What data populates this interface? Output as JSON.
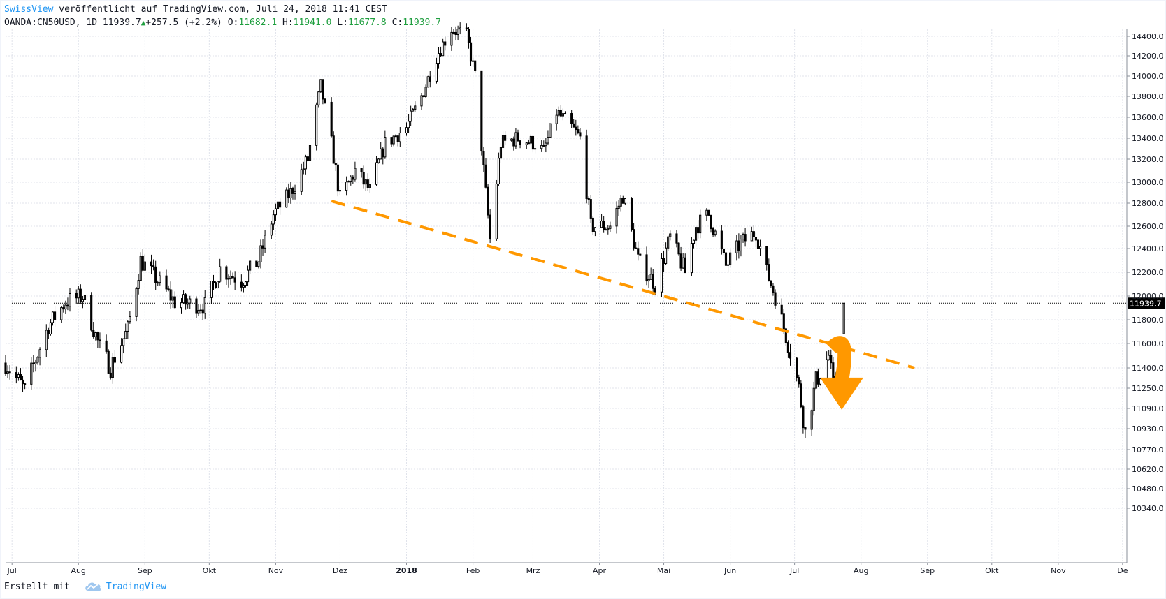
{
  "header": {
    "author": "SwissView",
    "published_text": "veröffentlicht auf TradingView.com, Juli 24, 2018 11:41 CEST",
    "symbol": "OANDA:CN50USD, 1D",
    "last": "11939.7",
    "change": "+257.5 (+2.2%)",
    "o_label": "O:",
    "o_value": "11682.1",
    "h_label": "H:",
    "h_value": "11941.0",
    "l_label": "L:",
    "l_value": "11677.8",
    "c_label": "C:",
    "c_value": "11939.7"
  },
  "footer": {
    "made_with": "Erstellt mit",
    "brand": "TradingView"
  },
  "colors": {
    "candle": "#000000",
    "grid": "#e0e3eb",
    "trendline": "#ff9800",
    "arrow": "#ff9800",
    "price_label_bg": "#000000"
  },
  "chart_data": {
    "type": "candlestick",
    "title": "",
    "symbol": "OANDA:CN50USD",
    "interval": "1D",
    "current_price": 11939.7,
    "current_price_label": "11939.7",
    "x_ticks": [
      "Jul",
      "Aug",
      "Sep",
      "Okt",
      "Nov",
      "Dez",
      "2018",
      "Feb",
      "Mrz",
      "Apr",
      "Mai",
      "Jun",
      "Jul",
      "Aug",
      "Sep",
      "Okt",
      "Nov",
      "De"
    ],
    "x_tick_dates": [
      "2017-07-01",
      "2017-08-01",
      "2017-09-01",
      "2017-10-01",
      "2017-11-01",
      "2017-12-01",
      "2018-01-01",
      "2018-02-01",
      "2018-03-01",
      "2018-04-01",
      "2018-05-01",
      "2018-06-01",
      "2018-07-01",
      "2018-08-01",
      "2018-09-01",
      "2018-10-01",
      "2018-11-01",
      "2018-12-01"
    ],
    "x_range": [
      "2017-06-28",
      "2018-12-03"
    ],
    "y_ticks": [
      14400,
      14200,
      14000,
      13800,
      13600,
      13400,
      13200,
      13000,
      12800,
      12600,
      12400,
      12200,
      12000,
      11800,
      11600,
      11400,
      11250,
      11090,
      10930,
      10770,
      10620,
      10480,
      10340
    ],
    "y_tick_labels": [
      "14400.0",
      "14200.0",
      "14000.0",
      "13800.0",
      "13600.0",
      "13400.0",
      "13200.0",
      "13000.0",
      "12800.0",
      "12600.0",
      "12400.0",
      "12200.0",
      "12000.0",
      "11800.0",
      "11600.0",
      "11400.0",
      "11250.0",
      "11090.0",
      "10930.0",
      "10770.0",
      "10620.0",
      "10480.0",
      "10340.0"
    ],
    "price_path": [
      [
        "2017-06-28",
        11440
      ],
      [
        "2017-07-07",
        11230
      ],
      [
        "2017-07-18",
        11750
      ],
      [
        "2017-07-26",
        11950
      ],
      [
        "2017-08-03",
        12000
      ],
      [
        "2017-08-11",
        11560
      ],
      [
        "2017-08-16",
        11410
      ],
      [
        "2017-08-24",
        11720
      ],
      [
        "2017-08-30",
        12300
      ],
      [
        "2017-09-07",
        12130
      ],
      [
        "2017-09-15",
        11950
      ],
      [
        "2017-09-29",
        11920
      ],
      [
        "2017-10-06",
        12230
      ],
      [
        "2017-10-16",
        12130
      ],
      [
        "2017-10-24",
        12300
      ],
      [
        "2017-10-31",
        12700
      ],
      [
        "2017-11-08",
        12900
      ],
      [
        "2017-11-16",
        13200
      ],
      [
        "2017-11-22",
        13900
      ],
      [
        "2017-11-27",
        13350
      ],
      [
        "2017-12-01",
        12850
      ],
      [
        "2017-12-08",
        13100
      ],
      [
        "2017-12-15",
        12920
      ],
      [
        "2017-12-22",
        13350
      ],
      [
        "2018-01-01",
        13500
      ],
      [
        "2018-01-08",
        13800
      ],
      [
        "2018-01-15",
        14200
      ],
      [
        "2018-01-22",
        14480
      ],
      [
        "2018-01-29",
        14400
      ],
      [
        "2018-02-02",
        14000
      ],
      [
        "2018-02-06",
        13100
      ],
      [
        "2018-02-09",
        12480
      ],
      [
        "2018-02-14",
        13350
      ],
      [
        "2018-02-22",
        13400
      ],
      [
        "2018-03-02",
        13350
      ],
      [
        "2018-03-06",
        13270
      ],
      [
        "2018-03-12",
        13650
      ],
      [
        "2018-03-19",
        13500
      ],
      [
        "2018-03-23",
        13400
      ],
      [
        "2018-03-28",
        12600
      ],
      [
        "2018-04-06",
        12600
      ],
      [
        "2018-04-12",
        12870
      ],
      [
        "2018-04-19",
        12300
      ],
      [
        "2018-04-27",
        12100
      ],
      [
        "2018-05-04",
        12500
      ],
      [
        "2018-05-11",
        12200
      ],
      [
        "2018-05-16",
        12600
      ],
      [
        "2018-05-22",
        12700
      ],
      [
        "2018-05-30",
        12250
      ],
      [
        "2018-06-06",
        12450
      ],
      [
        "2018-06-13",
        12550
      ],
      [
        "2018-06-18",
        12200
      ],
      [
        "2018-06-22",
        12000
      ],
      [
        "2018-06-28",
        11600
      ],
      [
        "2018-07-03",
        11250
      ],
      [
        "2018-07-06",
        10900
      ],
      [
        "2018-07-11",
        11300
      ],
      [
        "2018-07-17",
        11500
      ],
      [
        "2018-07-19",
        11250
      ],
      [
        "2018-07-23",
        11680
      ],
      [
        "2018-07-24",
        11939.7
      ]
    ],
    "trendline": {
      "style": "dashed",
      "from": [
        "2017-11-27",
        12820
      ],
      "to": [
        "2018-08-26",
        11400
      ]
    },
    "annotation": {
      "type": "curved-arrow-down",
      "start": [
        "2018-07-18",
        11560
      ],
      "peak": [
        "2018-07-20",
        11620
      ],
      "tip": [
        "2018-07-23",
        11080
      ]
    }
  }
}
